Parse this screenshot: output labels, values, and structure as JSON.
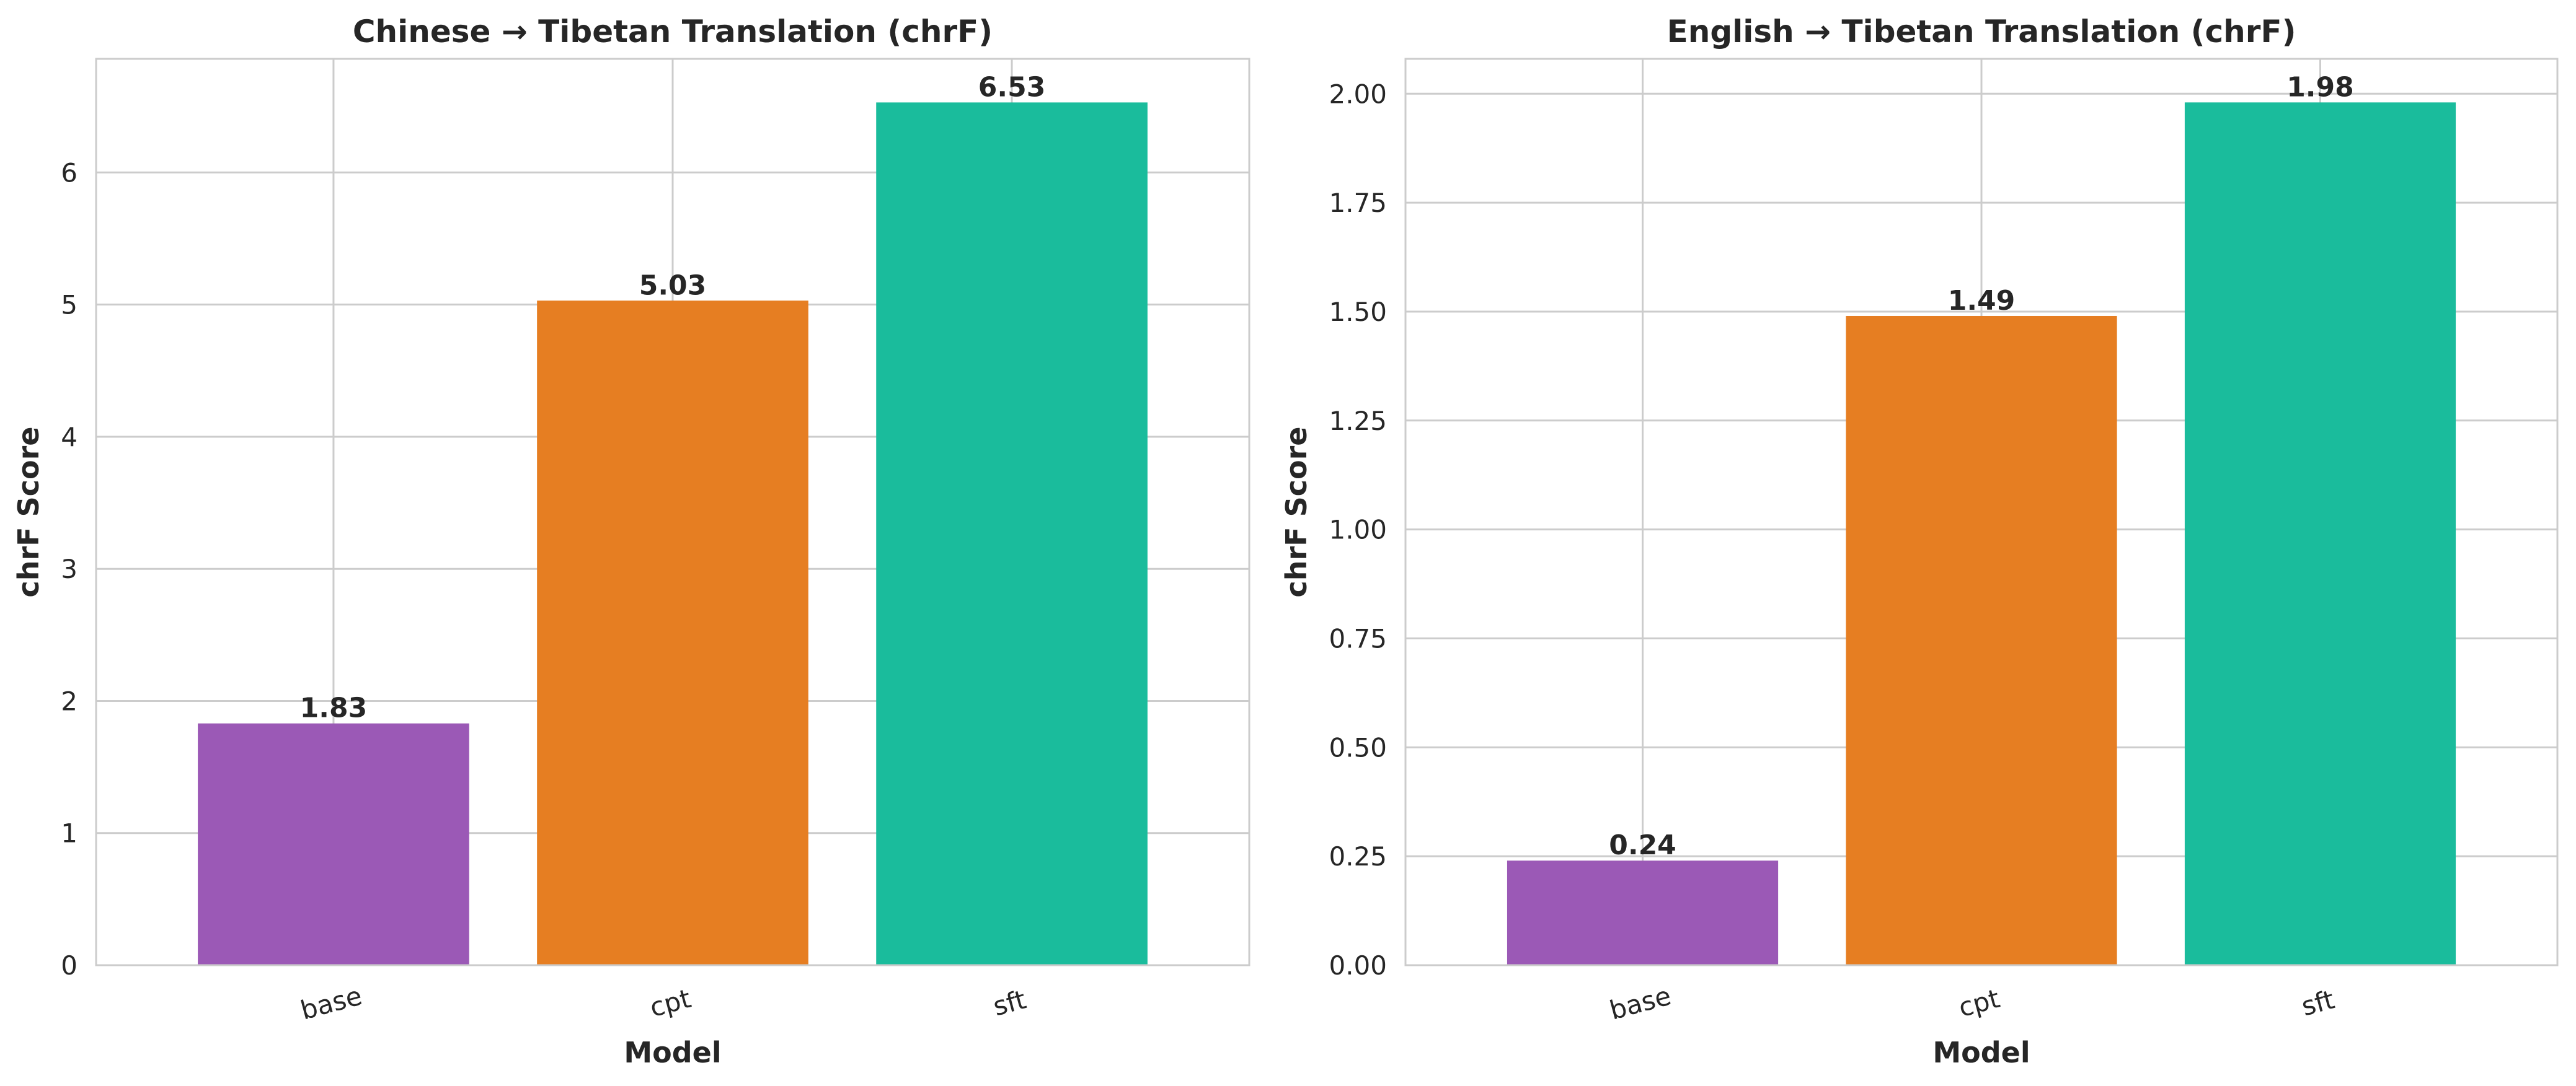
{
  "chart_data": [
    {
      "type": "bar",
      "title": "Chinese → Tibetan Translation (chrF)",
      "xlabel": "Model",
      "ylabel": "chrF Score",
      "categories": [
        "base",
        "cpt",
        "sft"
      ],
      "values": [
        1.83,
        5.03,
        6.53
      ],
      "value_labels": [
        "1.83",
        "5.03",
        "6.53"
      ],
      "colors": [
        "#9b59b6",
        "#e67e22",
        "#1abc9c"
      ],
      "ylim": [
        0,
        6.86
      ],
      "yticks": [
        0,
        1,
        2,
        3,
        4,
        5,
        6
      ],
      "ytick_labels": [
        "0",
        "1",
        "2",
        "3",
        "4",
        "5",
        "6"
      ],
      "grid": true
    },
    {
      "type": "bar",
      "title": "English → Tibetan Translation (chrF)",
      "xlabel": "Model",
      "ylabel": "chrF Score",
      "categories": [
        "base",
        "cpt",
        "sft"
      ],
      "values": [
        0.24,
        1.49,
        1.98
      ],
      "value_labels": [
        "0.24",
        "1.49",
        "1.98"
      ],
      "colors": [
        "#9b59b6",
        "#e67e22",
        "#1abc9c"
      ],
      "ylim": [
        0,
        2.08
      ],
      "yticks": [
        0,
        0.25,
        0.5,
        0.75,
        1.0,
        1.25,
        1.5,
        1.75,
        2.0
      ],
      "ytick_labels": [
        "0.00",
        "0.25",
        "0.50",
        "0.75",
        "1.00",
        "1.25",
        "1.50",
        "1.75",
        "2.00"
      ],
      "grid": true
    }
  ]
}
